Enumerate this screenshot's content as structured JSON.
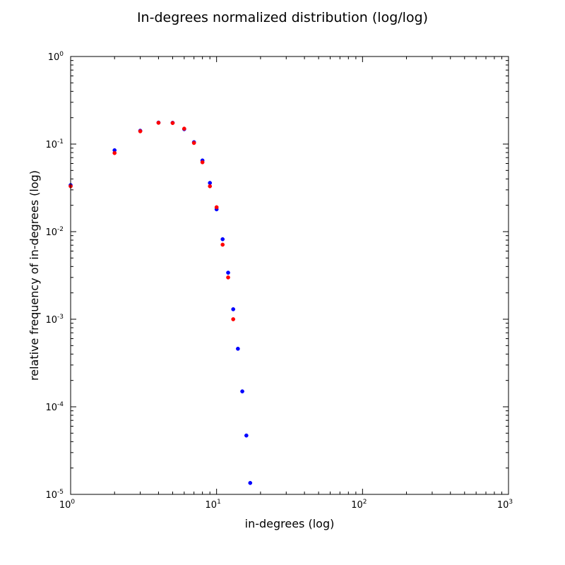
{
  "chart_data": {
    "type": "scatter",
    "title": "In-degrees normalized distribution (log/log)",
    "xlabel": "in-degrees (log)",
    "ylabel": "relative frequency of in-degrees (log)",
    "xscale": "log",
    "yscale": "log",
    "xlim": [
      1,
      1000
    ],
    "ylim": [
      1e-05,
      1
    ],
    "grid": false,
    "x_tick_labels": [
      {
        "base": "10",
        "exp": "0",
        "value": 1
      },
      {
        "base": "10",
        "exp": "1",
        "value": 10
      },
      {
        "base": "10",
        "exp": "2",
        "value": 100
      },
      {
        "base": "10",
        "exp": "3",
        "value": 1000
      }
    ],
    "y_tick_labels": [
      {
        "base": "10",
        "exp": "0",
        "value": 1
      },
      {
        "base": "10",
        "exp": "-1",
        "value": 0.1
      },
      {
        "base": "10",
        "exp": "-2",
        "value": 0.01
      },
      {
        "base": "10",
        "exp": "-3",
        "value": 0.001
      },
      {
        "base": "10",
        "exp": "-4",
        "value": 0.0001
      },
      {
        "base": "10",
        "exp": "-5",
        "value": 1e-05
      }
    ],
    "series": [
      {
        "color": "#0000ff",
        "points": [
          {
            "x": 1,
            "y": 0.034
          },
          {
            "x": 2,
            "y": 0.085
          },
          {
            "x": 3,
            "y": 0.142
          },
          {
            "x": 4,
            "y": 0.176
          },
          {
            "x": 5,
            "y": 0.175
          },
          {
            "x": 6,
            "y": 0.148
          },
          {
            "x": 7,
            "y": 0.105
          },
          {
            "x": 8,
            "y": 0.065
          },
          {
            "x": 9,
            "y": 0.036
          },
          {
            "x": 10,
            "y": 0.018
          },
          {
            "x": 11,
            "y": 0.0082
          },
          {
            "x": 12,
            "y": 0.0034
          },
          {
            "x": 13,
            "y": 0.0013
          },
          {
            "x": 14,
            "y": 0.00046
          },
          {
            "x": 15,
            "y": 0.00015
          },
          {
            "x": 16,
            "y": 4.7e-05
          },
          {
            "x": 17,
            "y": 1.35e-05
          }
        ]
      },
      {
        "color": "#ff0000",
        "points": [
          {
            "x": 1,
            "y": 0.033
          },
          {
            "x": 2,
            "y": 0.079
          },
          {
            "x": 3,
            "y": 0.14
          },
          {
            "x": 4,
            "y": 0.175
          },
          {
            "x": 5,
            "y": 0.174
          },
          {
            "x": 6,
            "y": 0.15
          },
          {
            "x": 7,
            "y": 0.103
          },
          {
            "x": 8,
            "y": 0.062
          },
          {
            "x": 9,
            "y": 0.033
          },
          {
            "x": 10,
            "y": 0.019
          },
          {
            "x": 11,
            "y": 0.0071
          },
          {
            "x": 12,
            "y": 0.003
          },
          {
            "x": 13,
            "y": 0.001
          }
        ]
      }
    ]
  }
}
